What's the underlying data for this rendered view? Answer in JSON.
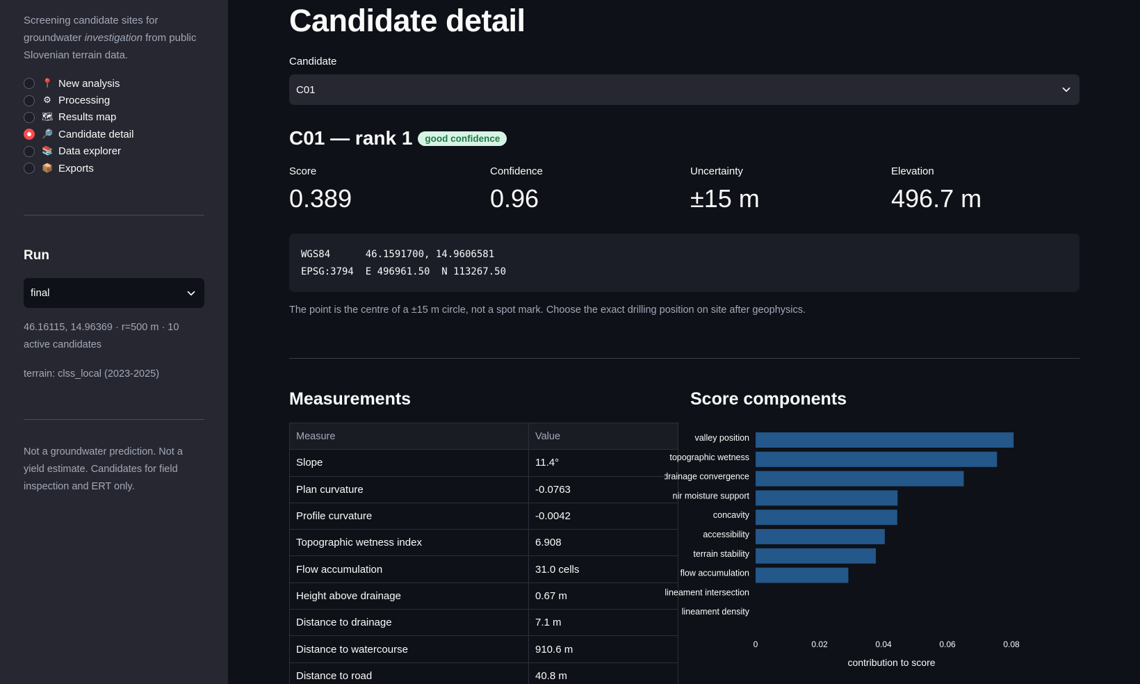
{
  "sidebar": {
    "intro_pre": "Screening candidate sites for groundwater ",
    "intro_em": "investigation",
    "intro_post": " from public Slovenian terrain data.",
    "nav": [
      {
        "label": "New analysis",
        "icon": "📍",
        "selected": false
      },
      {
        "label": "Processing",
        "icon": "⚙",
        "selected": false
      },
      {
        "label": "Results map",
        "icon": "🗺",
        "selected": false
      },
      {
        "label": "Candidate detail",
        "icon": "🔎",
        "selected": true
      },
      {
        "label": "Data explorer",
        "icon": "📚",
        "selected": false
      },
      {
        "label": "Exports",
        "icon": "📦",
        "selected": false
      }
    ],
    "run_title": "Run",
    "run_value": "final",
    "run_info": "46.16115, 14.96369 · r=500 m · 10 active candidates",
    "terrain": "terrain: clss_local (2023-2025)",
    "disclaimer": "Not a groundwater prediction. Not a yield estimate. Candidates for field inspection and ERT only."
  },
  "main": {
    "title": "Candidate detail",
    "candidate_label": "Candidate",
    "candidate_value": "C01",
    "subtitle": "C01 — rank 1",
    "badge": "good confidence",
    "metrics": [
      {
        "label": "Score",
        "value": "0.389"
      },
      {
        "label": "Confidence",
        "value": "0.96"
      },
      {
        "label": "Uncertainty",
        "value": "±15 m"
      },
      {
        "label": "Elevation",
        "value": "496.7 m"
      }
    ],
    "coords_line1": "WGS84      46.1591700, 14.9606581",
    "coords_line2": "EPSG:3794  E 496961.50  N 113267.50",
    "caption": "The point is the centre of a ±15 m circle, not a spot mark. Choose the exact drilling position on site after geophysics.",
    "measurements_title": "Measurements",
    "table_headers": [
      "Measure",
      "Value"
    ],
    "table_rows": [
      [
        "Slope",
        "11.4°"
      ],
      [
        "Plan curvature",
        "-0.0763"
      ],
      [
        "Profile curvature",
        "-0.0042"
      ],
      [
        "Topographic wetness index",
        "6.908"
      ],
      [
        "Flow accumulation",
        "31.0 cells"
      ],
      [
        "Height above drainage",
        "0.67 m"
      ],
      [
        "Distance to drainage",
        "7.1 m"
      ],
      [
        "Distance to watercourse",
        "910.6 m"
      ],
      [
        "Distance to road",
        "40.8 m"
      ]
    ],
    "score_title": "Score components"
  },
  "colors": {
    "bar": "#24578a",
    "accent": "#ff4b4b"
  },
  "chart_data": {
    "type": "bar",
    "orientation": "horizontal",
    "categories": [
      "valley position",
      "topographic wetness",
      "drainage convergence",
      "nir moisture support",
      "concavity",
      "accessibility",
      "terrain stability",
      "flow accumulation",
      "lineament intersection",
      "lineament density"
    ],
    "values": [
      0.0807,
      0.0755,
      0.0651,
      0.0444,
      0.0443,
      0.0404,
      0.0376,
      0.029,
      0,
      0
    ],
    "xlabel": "contribution to score",
    "xticks": [
      "0",
      "0.02",
      "0.04",
      "0.06",
      "0.08"
    ],
    "xlim": [
      0,
      0.085
    ]
  }
}
